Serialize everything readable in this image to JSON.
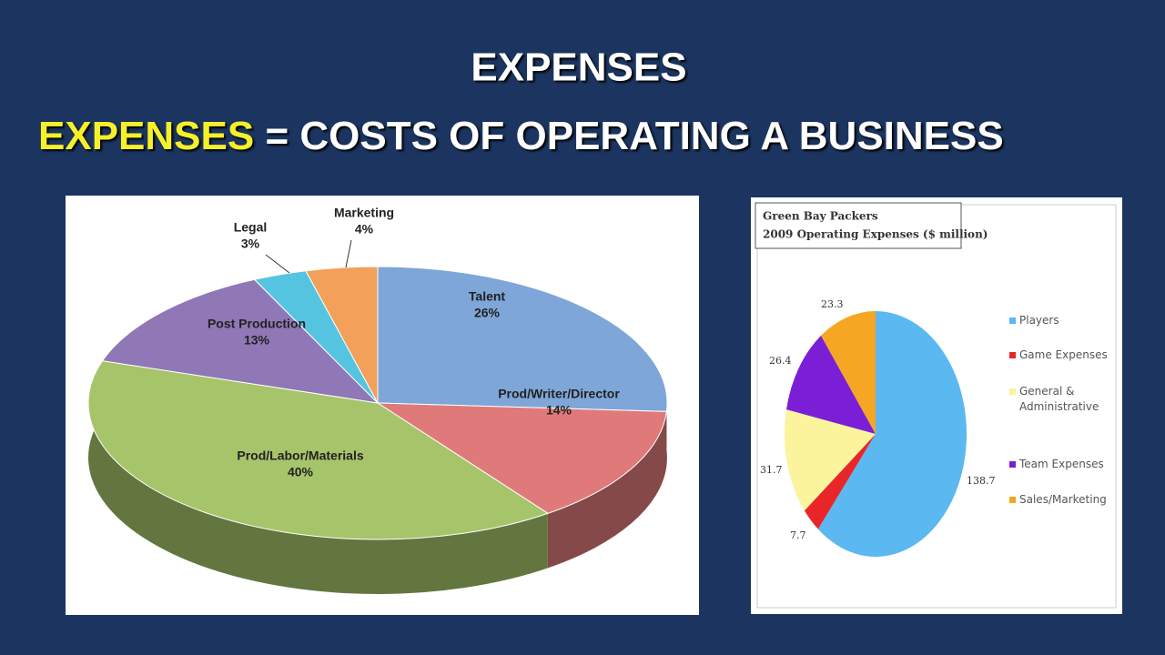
{
  "slide": {
    "title": "EXPENSES",
    "headline_term": "EXPENSES",
    "headline_rest": "= COSTS OF OPERATING A BUSINESS"
  },
  "chart_data": [
    {
      "type": "pie3d",
      "categories": [
        "Talent",
        "Prod/Writer/Director",
        "Prod/Labor/Materials",
        "Post Production",
        "Legal",
        "Marketing"
      ],
      "values": [
        26,
        14,
        40,
        13,
        3,
        4
      ],
      "value_labels": [
        "26%",
        "14%",
        "40%",
        "13%",
        "3%",
        "4%"
      ],
      "colors": [
        "#7ea6d8",
        "#e07a7a",
        "#a6c46a",
        "#9077b5",
        "#55c4e0",
        "#f2a05a"
      ]
    },
    {
      "type": "pie",
      "title": "Green Bay Packers",
      "subtitle": "2009 Operating Expenses ($ million)",
      "categories": [
        "Players",
        "Game Expenses",
        "General & Administrative",
        "Team Expenses",
        "Sales/Marketing"
      ],
      "values": [
        138.7,
        7.7,
        31.7,
        26.4,
        23.3
      ],
      "colors": [
        "#5bb8f0",
        "#e8262a",
        "#fbf49c",
        "#7b1fd6",
        "#f5a623"
      ],
      "legend": "right"
    }
  ]
}
